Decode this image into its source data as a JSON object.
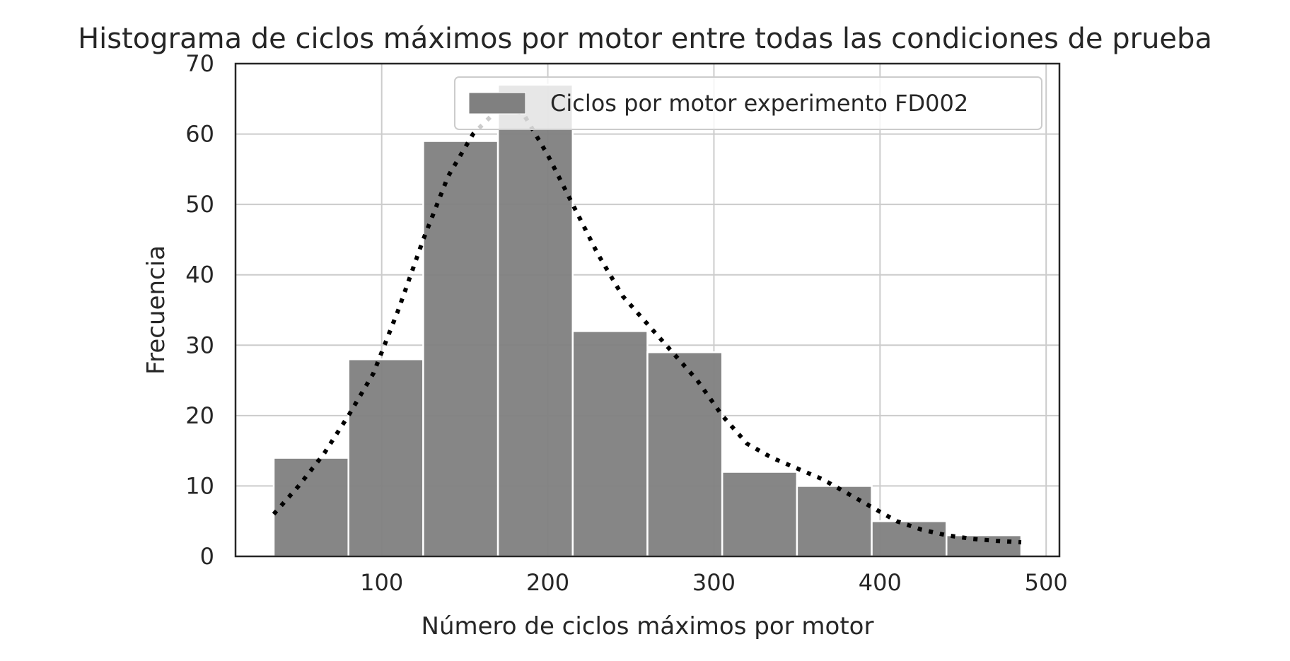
{
  "chart_data": {
    "type": "bar",
    "subtype": "histogram",
    "title": "Histograma de ciclos máximos por motor entre todas las condiciones de prueba",
    "xlabel": "Número de ciclos máximos por motor",
    "ylabel": "Frecuencia",
    "xlim": [
      12,
      508
    ],
    "ylim": [
      0,
      70
    ],
    "xticks": [
      100,
      200,
      300,
      400,
      500
    ],
    "yticks": [
      0,
      10,
      20,
      30,
      40,
      50,
      60,
      70
    ],
    "grid": true,
    "legend": {
      "location": "top-right",
      "entries": [
        "Ciclos por motor experimento FD002"
      ]
    },
    "colors": {
      "bars": "#808080",
      "kde": "#000000",
      "grid": "#cccccc",
      "frame": "#262626"
    },
    "series": [
      {
        "name": "Ciclos por motor experimento FD002",
        "bin_edges": [
          35,
          80,
          125,
          170,
          215,
          260,
          305,
          350,
          395,
          440,
          485
        ],
        "values": [
          14,
          28,
          59,
          67,
          32,
          29,
          12,
          10,
          5,
          3
        ]
      }
    ],
    "kde": {
      "style": "dotted",
      "x": [
        35,
        50,
        65,
        80,
        95,
        110,
        125,
        140,
        155,
        170,
        185,
        200,
        215,
        230,
        245,
        260,
        275,
        290,
        305,
        320,
        335,
        350,
        365,
        380,
        395,
        410,
        425,
        440,
        455,
        470,
        485
      ],
      "y": [
        6,
        10,
        14.5,
        20,
        26,
        35,
        45,
        54,
        60,
        63.5,
        63,
        57,
        50,
        43,
        37,
        33,
        29,
        25,
        20,
        16,
        14,
        12.5,
        11,
        9,
        7,
        5,
        3.8,
        3,
        2.5,
        2.2,
        2
      ]
    }
  }
}
